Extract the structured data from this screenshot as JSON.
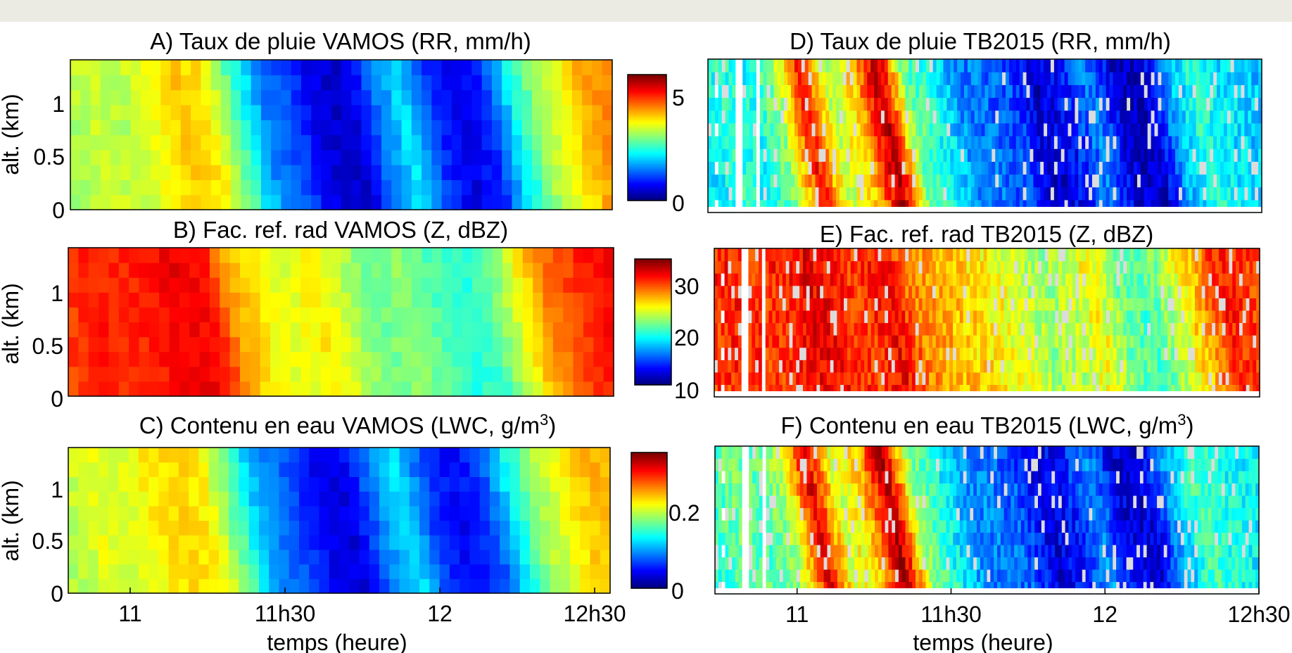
{
  "chart_data": [
    {
      "type": "heatmap",
      "title": "A) Taux de pluie VAMOS (RR, mm/h)",
      "ylabel": "alt. (km)",
      "xlabel": "",
      "yticks": [
        "0",
        "0.5",
        "1"
      ],
      "ylim": [
        0,
        1.4
      ],
      "xlim": [
        "10h48",
        "12h33"
      ],
      "colorbar": {
        "ticks": [
          "0",
          "5"
        ],
        "range": [
          0,
          6.2
        ],
        "colormap": "jet"
      },
      "time_profile": [
        3.3,
        3.6,
        3.4,
        3.8,
        4.2,
        4.0,
        2.8,
        1.6,
        1.2,
        0.6,
        0.4,
        1.4,
        2.2,
        1.1,
        0.6,
        1.0,
        2.4,
        3.4,
        4.0,
        4.6
      ],
      "vertical_trend": "uniform with slight tilt"
    },
    {
      "type": "heatmap",
      "title": "B) Fac. ref. rad VAMOS (Z, dBZ)",
      "ylabel": "alt. (km)",
      "xlabel": "",
      "yticks": [
        "0",
        "0.5",
        "1"
      ],
      "ylim": [
        0,
        1.4
      ],
      "xlim": [
        "10h48",
        "12h33"
      ],
      "colorbar": {
        "ticks": [
          "10",
          "20",
          "30"
        ],
        "range": [
          9,
          36
        ],
        "colormap": "jet"
      },
      "time_profile": [
        31,
        32,
        31.5,
        32,
        33,
        32.5,
        28,
        26,
        25,
        26.5,
        24,
        22,
        23,
        21.5,
        20,
        21,
        25,
        29,
        31,
        32.5
      ],
      "vertical_trend": "uniform with slight tilt"
    },
    {
      "type": "heatmap",
      "title": "C) Contenu en eau VAMOS (LWC, g/m",
      "title_sup": "3",
      "title_end": ")",
      "ylabel": "alt. (km)",
      "xlabel": "temps (heure)",
      "xticks": [
        "11",
        "11h30",
        "12",
        "12h30"
      ],
      "xtick_minutes": [
        660,
        690,
        720,
        750
      ],
      "yticks": [
        "0",
        "0.5",
        "1"
      ],
      "ylim": [
        0,
        1.4
      ],
      "xlim": [
        "10h48",
        "12h33"
      ],
      "colorbar": {
        "ticks": [
          "0",
          "0.2"
        ],
        "range": [
          0,
          0.33
        ],
        "colormap": "jet"
      },
      "time_profile": [
        0.18,
        0.2,
        0.19,
        0.21,
        0.22,
        0.21,
        0.15,
        0.09,
        0.07,
        0.04,
        0.03,
        0.08,
        0.12,
        0.06,
        0.04,
        0.06,
        0.13,
        0.18,
        0.21,
        0.23
      ],
      "vertical_trend": "uniform with slight tilt"
    },
    {
      "type": "heatmap",
      "title": "D) Taux de pluie TB2015 (RR, mm/h)",
      "ylabel": "",
      "xlabel": "",
      "xlim": [
        "10h44",
        "12h30"
      ],
      "colorbar": {
        "ticks": [],
        "range": [
          0,
          6.2
        ],
        "colormap": "jet"
      },
      "time_profile": [
        2.2,
        2.6,
        2.4,
        3.2,
        5.4,
        3.4,
        4.2,
        6.0,
        3.0,
        2.4,
        1.6,
        1.4,
        1.2,
        0.4,
        0.9,
        1.6,
        0.5,
        0.4,
        1.8,
        2.6,
        2.2,
        2.0
      ],
      "vertical_trend": "noisy streaks with gaps near start"
    },
    {
      "type": "heatmap",
      "title": "E) Fac. ref. rad TB2015 (Z, dBZ)",
      "ylabel": "",
      "xlabel": "",
      "xlim": [
        "10h44",
        "12h30"
      ],
      "colorbar": {
        "ticks": [],
        "range": [
          9,
          36
        ],
        "colormap": "jet"
      },
      "time_profile": [
        31,
        32,
        31,
        32,
        33,
        32,
        31,
        33,
        29,
        28,
        27,
        26,
        25,
        23,
        24,
        26,
        22,
        21,
        24,
        28,
        32,
        31
      ],
      "vertical_trend": "noisy streaks with gaps near start"
    },
    {
      "type": "heatmap",
      "title": "F) Contenu en eau TB2015 (LWC, g/m",
      "title_sup": "3",
      "title_end": ")",
      "ylabel": "",
      "xlabel": "temps (heure)",
      "xticks": [
        "11",
        "11h30",
        "12",
        "12h30"
      ],
      "xtick_minutes": [
        660,
        690,
        720,
        750
      ],
      "xlim": [
        "10h44",
        "12h30"
      ],
      "colorbar": {
        "ticks": [],
        "range": [
          0,
          0.33
        ],
        "colormap": "jet"
      },
      "time_profile": [
        0.14,
        0.16,
        0.15,
        0.18,
        0.3,
        0.19,
        0.22,
        0.32,
        0.17,
        0.13,
        0.09,
        0.08,
        0.07,
        0.03,
        0.05,
        0.09,
        0.03,
        0.03,
        0.1,
        0.15,
        0.13,
        0.12
      ],
      "vertical_trend": "noisy streaks with gaps near start"
    }
  ]
}
